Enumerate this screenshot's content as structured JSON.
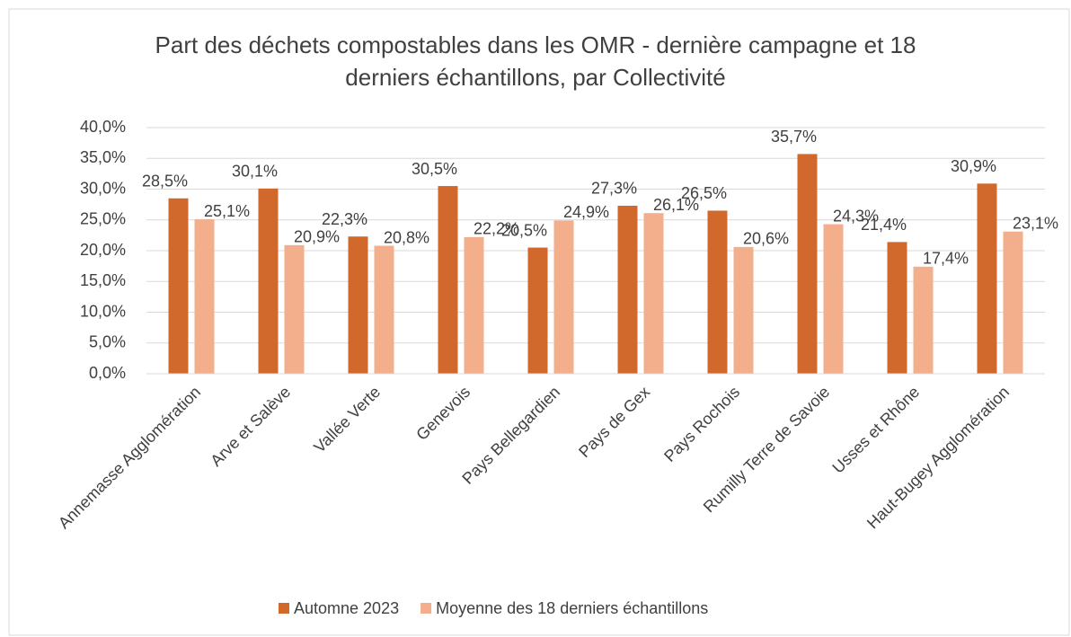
{
  "chart_data": {
    "type": "bar",
    "title": "Part des déchets compostables dans les OMR - dernière campagne et 18 derniers échantillons, par Collectivité",
    "categories": [
      "Annemasse Agglomération",
      "Arve et Salève",
      "Vallée Verte",
      "Genevois",
      "Pays Bellegardien",
      "Pays de Gex",
      "Pays Rochois",
      "Rumilly Terre de Savoie",
      "Usses et Rhône",
      "Haut-Bugey Agglomération"
    ],
    "series": [
      {
        "name": "Automne 2023",
        "color": "#d0692b",
        "values": [
          28.5,
          30.1,
          22.3,
          30.5,
          20.5,
          27.3,
          26.5,
          35.7,
          21.4,
          30.9
        ],
        "value_labels": [
          "28,5%",
          "30,1%",
          "22,3%",
          "30,5%",
          "20,5%",
          "27,3%",
          "26,5%",
          "35,7%",
          "21,4%",
          "30,9%"
        ]
      },
      {
        "name": "Moyenne des 18 derniers échantillons",
        "color": "#f3ae8c",
        "values": [
          25.1,
          20.9,
          20.8,
          22.2,
          24.9,
          26.1,
          20.6,
          24.3,
          17.4,
          23.1
        ],
        "value_labels": [
          "25,1%",
          "20,9%",
          "20,8%",
          "22,2%",
          "24,9%",
          "26,1%",
          "20,6%",
          "24,3%",
          "17,4%",
          "23,1%"
        ]
      }
    ],
    "ylim": [
      0,
      40
    ],
    "yticks": [
      {
        "value": 0,
        "label": "0,0%"
      },
      {
        "value": 5,
        "label": "5,0%"
      },
      {
        "value": 10,
        "label": "10,0%"
      },
      {
        "value": 15,
        "label": "15,0%"
      },
      {
        "value": 20,
        "label": "20,0%"
      },
      {
        "value": 25,
        "label": "25,0%"
      },
      {
        "value": 30,
        "label": "30,0%"
      },
      {
        "value": 35,
        "label": "35,0%"
      },
      {
        "value": 40,
        "label": "40,0%"
      }
    ],
    "grid": true,
    "legend": "bottom"
  }
}
